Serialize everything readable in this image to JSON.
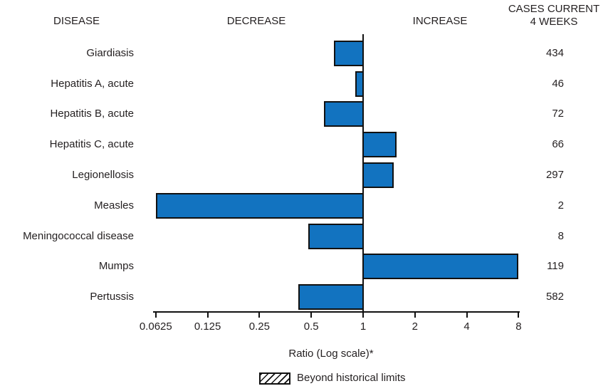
{
  "header": {
    "disease": "DISEASE",
    "decrease": "DECREASE",
    "increase": "INCREASE",
    "cases_line1": "CASES CURRENT",
    "cases_line2": "4 WEEKS"
  },
  "chart_data": {
    "type": "bar",
    "orientation": "horizontal",
    "scale": "log2",
    "title": "",
    "xlabel": "Ratio (Log scale)*",
    "baseline": 1,
    "xrange": [
      0.0625,
      8
    ],
    "tick_values": [
      0.0625,
      0.125,
      0.25,
      0.5,
      1,
      2,
      4,
      8
    ],
    "tick_labels": [
      "0.0625",
      "0.125",
      "0.25",
      "0.5",
      "1",
      "2",
      "4",
      "8"
    ],
    "rows": [
      {
        "disease": "Giardiasis",
        "ratio": 0.68,
        "cases": "434",
        "beyond_limits": false
      },
      {
        "disease": "Hepatitis A, acute",
        "ratio": 0.9,
        "cases": "46",
        "beyond_limits": false
      },
      {
        "disease": "Hepatitis B, acute",
        "ratio": 0.59,
        "cases": "72",
        "beyond_limits": false
      },
      {
        "disease": "Hepatitis C, acute",
        "ratio": 1.56,
        "cases": "66",
        "beyond_limits": false
      },
      {
        "disease": "Legionellosis",
        "ratio": 1.5,
        "cases": "297",
        "beyond_limits": false
      },
      {
        "disease": "Measles",
        "ratio": 0.0625,
        "cases": "2",
        "beyond_limits": false
      },
      {
        "disease": "Meningococcal disease",
        "ratio": 0.48,
        "cases": "8",
        "beyond_limits": false
      },
      {
        "disease": "Mumps",
        "ratio": 8.0,
        "cases": "119",
        "beyond_limits": false
      },
      {
        "disease": "Pertussis",
        "ratio": 0.42,
        "cases": "582",
        "beyond_limits": false
      }
    ],
    "legend": {
      "label": "Beyond historical limits",
      "swatch": "diagonal-hatch"
    },
    "colors": {
      "bar_fill": "#1273C0",
      "bar_border": "#111111",
      "axis": "#111111",
      "text": "#231f20"
    }
  }
}
